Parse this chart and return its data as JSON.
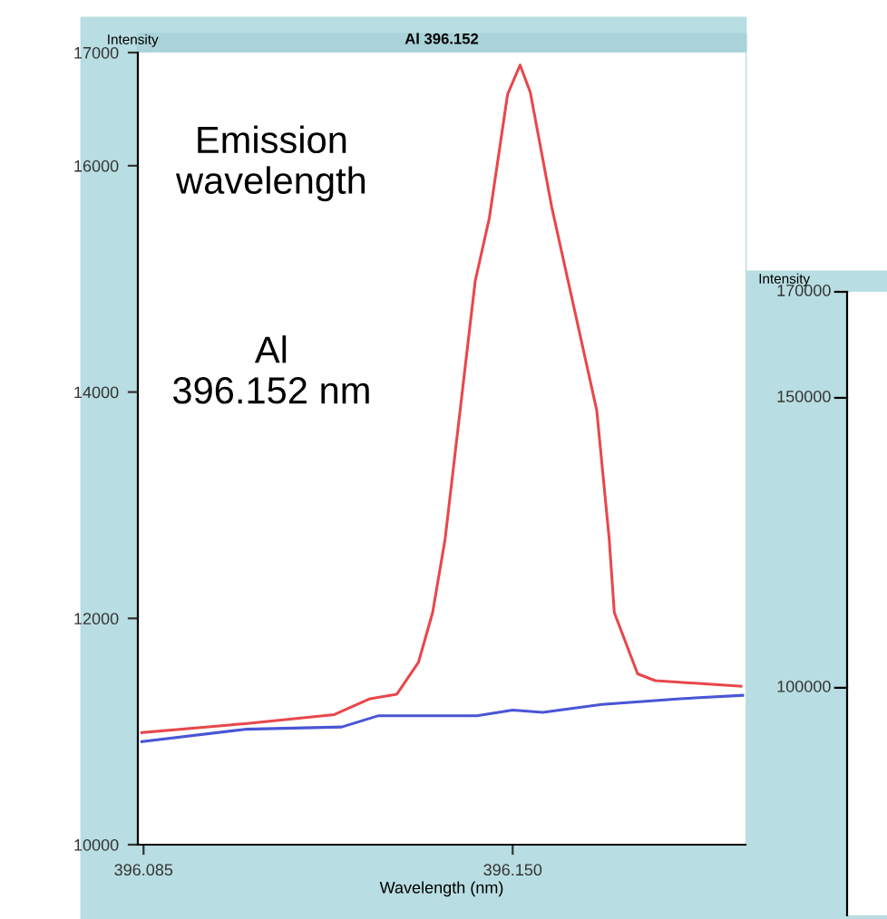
{
  "chart_data": [
    {
      "type": "line",
      "title": "Al 396.152",
      "xlabel": "Wavelength (nm)",
      "ylabel": "Intensity",
      "annotations": [
        "Emission\nwavelength",
        "Al\n396.152 nm"
      ],
      "xlim": [
        396.084,
        396.191
      ],
      "ylim": [
        10000,
        17000
      ],
      "xticks": [
        396.085,
        {
          "value": 396.15,
          "label": "396.150"
        }
      ],
      "yticks": [
        10000,
        12000,
        14000,
        16000,
        17000
      ],
      "grid": false,
      "legend": false,
      "marker": "none",
      "line_style": "solid",
      "series": [
        {
          "color": "#e8474c",
          "x": [
            396.0847,
            396.1029,
            396.1186,
            396.1249,
            396.1296,
            396.1334,
            396.1359,
            396.1381,
            396.1434,
            396.1459,
            396.1491,
            396.1513,
            396.1531,
            396.1569,
            396.1648,
            396.167,
            396.1679,
            396.172,
            396.1751,
            396.1902
          ],
          "values": [
            10990,
            11070,
            11150,
            11290,
            11330,
            11610,
            12050,
            12700,
            14980,
            15540,
            16630,
            16890,
            16650,
            15630,
            13840,
            12700,
            12050,
            11510,
            11450,
            11400
          ]
        },
        {
          "color": "#4a55d6",
          "x": [
            396.0847,
            396.1029,
            396.1199,
            396.1264,
            396.1437,
            396.15,
            396.1553,
            396.1657,
            396.1795,
            396.1905
          ],
          "values": [
            10910,
            11020,
            11040,
            11140,
            11140,
            11190,
            11170,
            11240,
            11290,
            11320
          ]
        }
      ]
    },
    {
      "type": "other",
      "ylabel": "Intensity",
      "annotations": [
        "170000",
        "150000",
        "100000"
      ]
    }
  ]
}
